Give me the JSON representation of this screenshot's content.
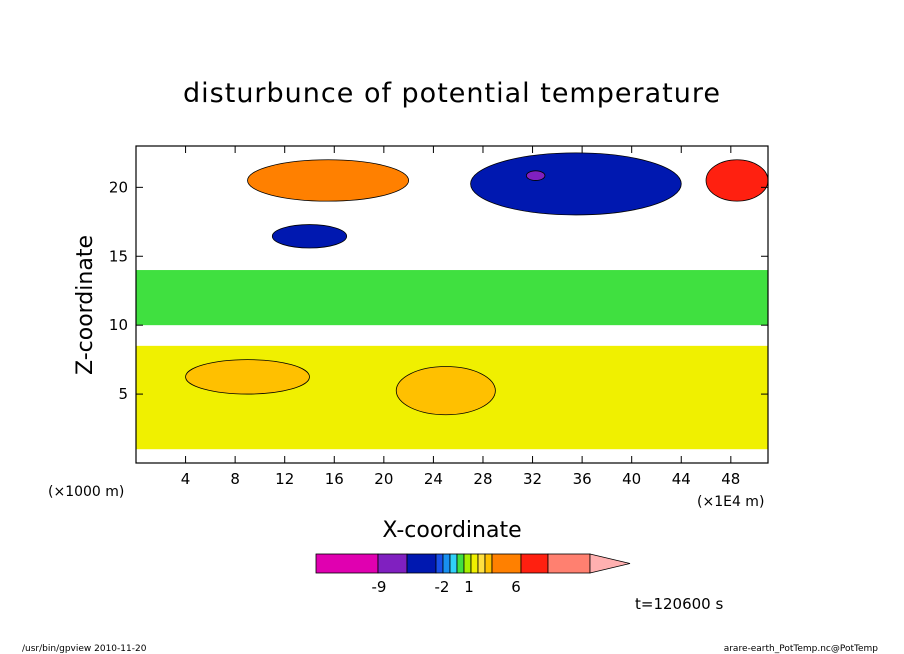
{
  "chart_data": {
    "type": "heatmap",
    "title": "disturbunce of potential temperature",
    "xlabel": "X-coordinate",
    "ylabel": "Z-coordinate",
    "x_unit_left": "(×1000 m)",
    "x_unit_right": "(×1E4 m)",
    "xlim": [
      0,
      51
    ],
    "ylim": [
      0,
      23
    ],
    "x_ticks": [
      4,
      8,
      12,
      16,
      20,
      24,
      28,
      32,
      36,
      40,
      44,
      48
    ],
    "y_ticks": [
      5,
      10,
      15,
      20
    ],
    "time_label": "t=120600 s",
    "colorbar": {
      "colors": [
        "#e000b0",
        "#8020c0",
        "#0018b0",
        "#1850e8",
        "#1890f0",
        "#30d0f8",
        "#40e040",
        "#a8f000",
        "#f0f000",
        "#ffe040",
        "#ffc000",
        "#ff8000",
        "#ff2010",
        "#ff8070",
        "#ffb0b0"
      ],
      "tick_labels": [
        "-9",
        "-2",
        "1",
        "6"
      ]
    },
    "regions": [
      {
        "level": "negative-strong",
        "x": [
          27,
          44
        ],
        "z": [
          18,
          22.5
        ],
        "color": "#0018b0"
      },
      {
        "level": "negative-strong",
        "x": [
          11,
          17
        ],
        "z": [
          15.6,
          17.3
        ],
        "color": "#0018b0"
      },
      {
        "level": "negative-min",
        "x": [
          31.5,
          33
        ],
        "z": [
          20.5,
          21.2
        ],
        "color": "#8020c0"
      },
      {
        "level": "positive",
        "x": [
          9,
          22
        ],
        "z": [
          19,
          22
        ],
        "color": "#ff8000"
      },
      {
        "level": "positive-max",
        "x": [
          46,
          51
        ],
        "z": [
          19,
          22
        ],
        "color": "#ff2010"
      },
      {
        "level": "positive",
        "x": [
          4,
          14
        ],
        "z": [
          5,
          7.5
        ],
        "color": "#ffc000"
      },
      {
        "level": "positive",
        "x": [
          21,
          29
        ],
        "z": [
          3.5,
          7
        ],
        "color": "#ffc000"
      },
      {
        "level": "near-zero-negative",
        "x": [
          0,
          51
        ],
        "z": [
          10,
          14
        ],
        "color": "#40e040"
      },
      {
        "level": "near-zero-positive",
        "x": [
          0,
          51
        ],
        "z": [
          1,
          8.5
        ],
        "color": "#f0f000"
      }
    ]
  },
  "footer": {
    "left_text": "/usr/bin/gpview   2010-11-20",
    "right_text": "arare-earth_PotTemp.nc@PotTemp"
  }
}
